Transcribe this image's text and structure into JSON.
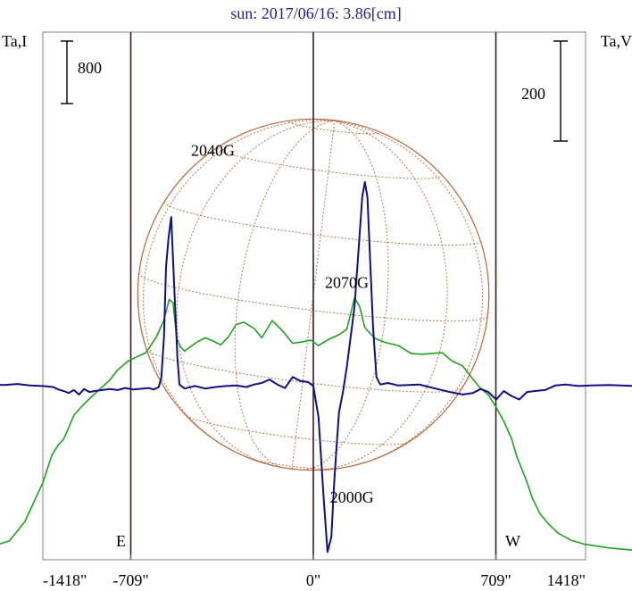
{
  "chart_data": {
    "type": "line",
    "title": "sun: 2017/06/16: 3.86[cm]",
    "ylabel_left": "Ta,I",
    "ylabel_right": "Ta,V",
    "xlim": [
      -1418,
      1418
    ],
    "xticks": [
      {
        "value": -1418,
        "label": "-1418\""
      },
      {
        "value": -709,
        "label": "-709\""
      },
      {
        "value": 0,
        "label": "0\""
      },
      {
        "value": 709,
        "label": "709\""
      },
      {
        "value": 1418,
        "label": "1418\""
      }
    ],
    "limb_lines": [
      -709,
      0,
      709
    ],
    "disk_radius_arcsec": 682,
    "scale_bars": {
      "left": {
        "label": "800",
        "value": 800
      },
      "right": {
        "label": "200",
        "value": 200
      }
    },
    "edge_labels": {
      "east": "E",
      "west": "W"
    },
    "annotations": [
      {
        "text": "2040G",
        "x": -390,
        "y": 70
      },
      {
        "text": "2070G",
        "x": 130,
        "y": 30
      },
      {
        "text": "2000G",
        "x": 150,
        "y": -35
      }
    ],
    "colors": {
      "intensity": "#20a020",
      "polarization": "#101080",
      "disk": "#b5653a",
      "frame": "#808080",
      "limb": "#3a1a1a"
    },
    "series": [
      {
        "name": "I",
        "axis": "left",
        "unit_scale": 800,
        "x": [
          -1418,
          -1340,
          -1250,
          -1180,
          -1120,
          -1050,
          -1015,
          -990,
          -970,
          -955,
          -930,
          -900,
          -860,
          -820,
          -790,
          -760,
          -720,
          -690,
          -650,
          -610,
          -580,
          -560,
          -545,
          -530,
          -515,
          -500,
          -480,
          -450,
          -420,
          -390,
          -360,
          -330,
          -300,
          -270,
          -230,
          -200,
          -160,
          -120,
          -80,
          -40,
          -10,
          20,
          60,
          100,
          130,
          160,
          180,
          200,
          240,
          280,
          330,
          380,
          420,
          460,
          500,
          540,
          580,
          620,
          650,
          680,
          710,
          740,
          770,
          790,
          810,
          830,
          850,
          880,
          910,
          950,
          1000,
          1050,
          1150,
          1250,
          1340,
          1418
        ],
        "y": [
          10,
          30,
          80,
          150,
          400,
          900,
          1250,
          1380,
          1450,
          1560,
          1760,
          1870,
          2000,
          2120,
          2210,
          2340,
          2450,
          2500,
          2560,
          2760,
          2980,
          3240,
          3200,
          2730,
          2630,
          2580,
          2630,
          2700,
          2750,
          2710,
          2660,
          2760,
          2920,
          2950,
          2870,
          2750,
          2970,
          2840,
          2680,
          2700,
          2720,
          2650,
          2730,
          2790,
          2860,
          3260,
          3150,
          2880,
          2740,
          2690,
          2650,
          2550,
          2540,
          2550,
          2560,
          2450,
          2390,
          2220,
          2100,
          2020,
          1860,
          1680,
          1460,
          1230,
          1070,
          900,
          700,
          500,
          380,
          250,
          160,
          110,
          60,
          30,
          15,
          5
        ]
      },
      {
        "name": "V",
        "axis": "right",
        "unit_scale": 200,
        "x": [
          -1418,
          -1350,
          -1300,
          -1250,
          -1200,
          -1150,
          -1100,
          -1050,
          -1010,
          -990,
          -970,
          -950,
          -930,
          -910,
          -890,
          -870,
          -850,
          -820,
          -790,
          -760,
          -730,
          -700,
          -680,
          -660,
          -640,
          -620,
          -600,
          -590,
          -580,
          -572,
          -562,
          -552,
          -540,
          -528,
          -520,
          -500,
          -460,
          -420,
          -380,
          -340,
          -300,
          -260,
          -230,
          -200,
          -170,
          -140,
          -110,
          -80,
          -50,
          -20,
          0,
          20,
          40,
          55,
          70,
          80,
          90,
          100,
          115,
          130,
          145,
          160,
          175,
          190,
          200,
          210,
          220,
          232,
          245,
          260,
          290,
          330,
          370,
          410,
          450,
          490,
          530,
          580,
          620,
          650,
          680,
          710,
          740,
          770,
          800,
          830,
          860,
          900,
          940,
          980,
          1030,
          1080,
          1150,
          1250,
          1350,
          1418
        ],
        "y": [
          5,
          8,
          3,
          5,
          4,
          6,
          3,
          2,
          0,
          -5,
          -8,
          -12,
          -6,
          -15,
          -4,
          -10,
          -8,
          -6,
          -4,
          -6,
          -2,
          -5,
          -4,
          -3,
          -2,
          -5,
          0,
          20,
          100,
          240,
          300,
          340,
          200,
          60,
          5,
          -3,
          2,
          -3,
          0,
          2,
          3,
          0,
          5,
          8,
          15,
          5,
          -2,
          20,
          12,
          10,
          2,
          -60,
          -220,
          -330,
          -300,
          -200,
          -120,
          -50,
          -10,
          40,
          100,
          160,
          270,
          380,
          410,
          380,
          260,
          120,
          20,
          5,
          8,
          3,
          4,
          5,
          0,
          -5,
          -10,
          -15,
          -12,
          -4,
          -10,
          -25,
          -8,
          -18,
          -25,
          -10,
          -8,
          -6,
          3,
          5,
          2,
          3,
          4,
          2,
          3,
          2
        ]
      }
    ]
  }
}
